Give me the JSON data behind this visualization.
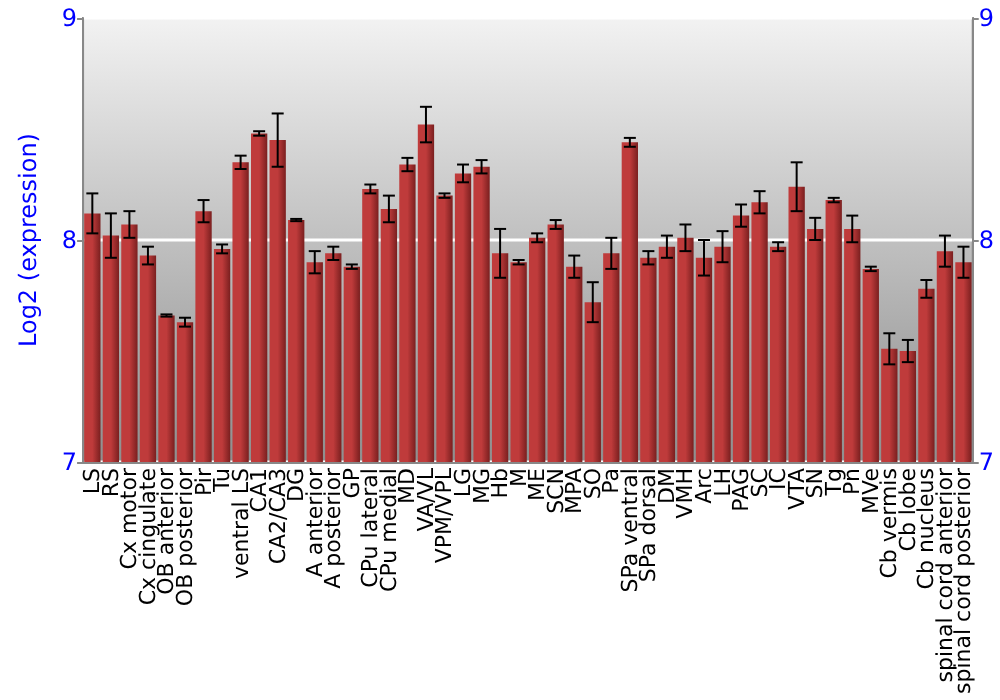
{
  "chart_data": {
    "type": "bar",
    "ylabel": "Log2 (expression)",
    "categories": [
      "LS",
      "RS",
      "Cx motor",
      "Cx cingulate",
      "OB anterior",
      "OB posterior",
      "Pir",
      "Tu",
      "ventral LS",
      "CA1",
      "CA2/CA3",
      "DG",
      "A anterior",
      "A posterior",
      "GP",
      "CPu lateral",
      "CPu medial",
      "MD",
      "VA/VL",
      "VPM/VPL",
      "LG",
      "MG",
      "Hb",
      "M",
      "ME",
      "SCN",
      "MPA",
      "SO",
      "Pa",
      "SPa ventral",
      "SPa dorsal",
      "DM",
      "VMH",
      "Arc",
      "LH",
      "PAG",
      "SC",
      "IC",
      "VTA",
      "SN",
      "Tg",
      "Pn",
      "MVe",
      "Cb vermis",
      "Cb lobe",
      "Cb nucleus",
      "spinal cord anterior",
      "spinal cord posterior"
    ],
    "values": [
      8.12,
      8.02,
      8.07,
      7.93,
      7.66,
      7.63,
      8.13,
      7.96,
      8.35,
      8.48,
      8.45,
      8.09,
      7.9,
      7.94,
      7.88,
      8.23,
      8.14,
      8.34,
      8.52,
      8.2,
      8.3,
      8.33,
      7.94,
      7.9,
      8.01,
      8.07,
      7.88,
      7.72,
      7.94,
      8.44,
      7.92,
      7.97,
      8.01,
      7.92,
      7.97,
      8.11,
      8.17,
      7.97,
      8.24,
      8.05,
      8.18,
      8.05,
      7.87,
      7.51,
      7.5,
      7.78,
      7.95,
      7.9
    ],
    "errors": [
      0.09,
      0.1,
      0.06,
      0.04,
      0.005,
      0.02,
      0.05,
      0.02,
      0.03,
      0.01,
      0.12,
      0.005,
      0.05,
      0.03,
      0.01,
      0.02,
      0.06,
      0.03,
      0.08,
      0.01,
      0.04,
      0.03,
      0.11,
      0.01,
      0.02,
      0.02,
      0.05,
      0.09,
      0.07,
      0.02,
      0.03,
      0.05,
      0.06,
      0.08,
      0.07,
      0.05,
      0.05,
      0.02,
      0.11,
      0.05,
      0.01,
      0.06,
      0.01,
      0.07,
      0.05,
      0.04,
      0.07,
      0.07
    ],
    "color": "#bf3b3b",
    "ylim": [
      7,
      9
    ],
    "yticks": [
      7,
      8,
      9
    ],
    "y2lim": [
      7,
      9
    ],
    "y2ticks": [
      7,
      8,
      9
    ],
    "grid": "y"
  }
}
